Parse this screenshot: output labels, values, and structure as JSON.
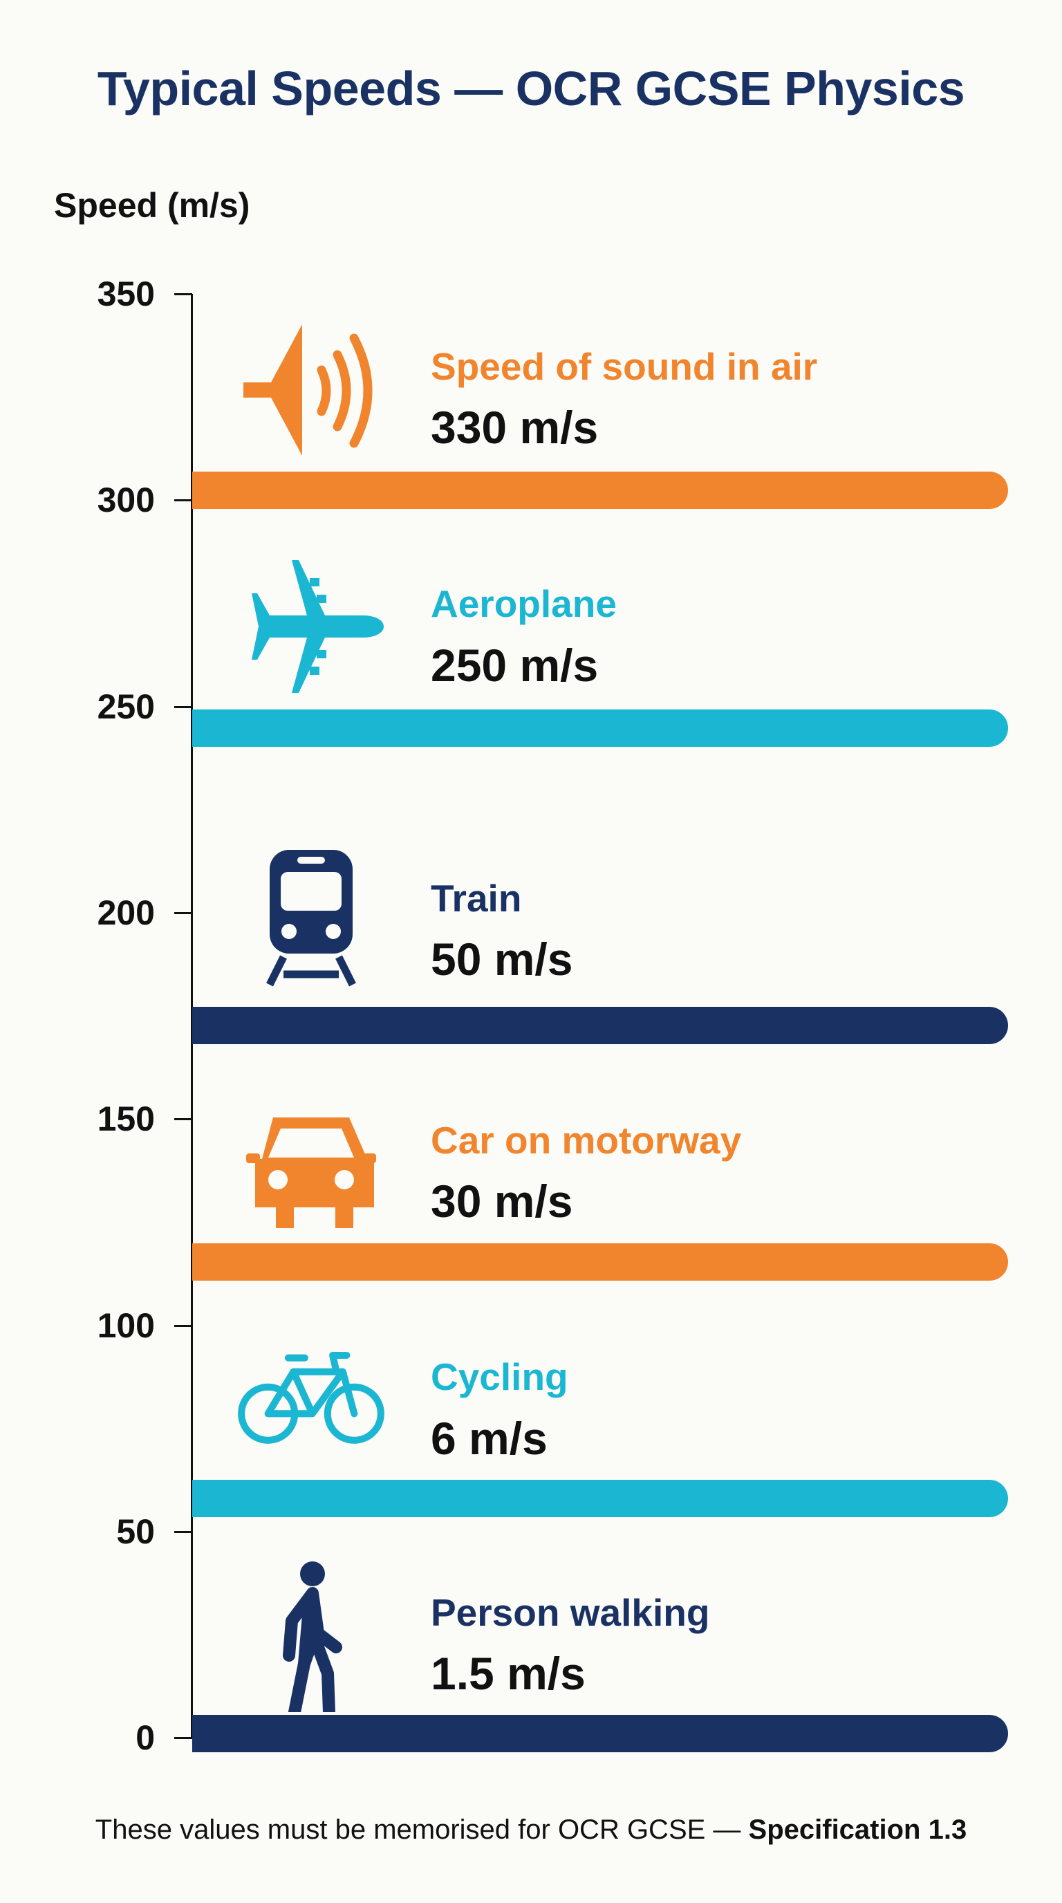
{
  "title": "Typical Speeds — OCR GCSE Physics",
  "footer": {
    "text": "These values must be memorised for OCR GCSE — ",
    "bold": "Specification 1.3"
  },
  "colors": {
    "orange": "#f0852d",
    "cyan": "#1bb6d1",
    "navy": "#1a3263"
  },
  "chart_data": {
    "type": "bar",
    "title": "Typical Speeds — OCR GCSE Physics",
    "xlabel": "",
    "ylabel": "Speed (m/s)",
    "ylim": [
      0,
      350
    ],
    "y_ticks": [
      "350",
      "300",
      "250",
      "200",
      "150",
      "100",
      "50",
      "0"
    ],
    "grid": false,
    "categories": [
      "Speed of sound in air",
      "Aeroplane",
      "Train",
      "Car on motorway",
      "Cycling",
      "Person walking"
    ],
    "values": [
      330,
      250,
      50,
      30,
      6,
      1.5
    ],
    "value_labels": [
      "330 m/s",
      "250 m/s",
      "50 m/s",
      "30 m/s",
      "6 m/s",
      "1.5 m/s"
    ],
    "icons": [
      "speaker-icon",
      "aeroplane-icon",
      "train-icon",
      "car-icon",
      "bicycle-icon",
      "walking-person-icon"
    ],
    "bar_colors": [
      "#f0852d",
      "#1bb6d1",
      "#1a3263",
      "#f0852d",
      "#1bb6d1",
      "#1a3263"
    ]
  }
}
